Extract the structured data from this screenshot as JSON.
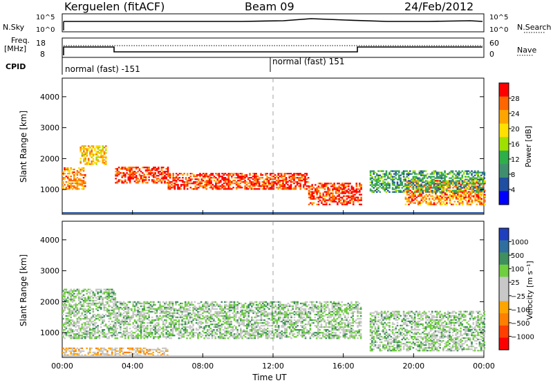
{
  "header": {
    "station": "Kerguelen (fitACF)",
    "beam": "Beam 09",
    "date": "24/Feb/2012"
  },
  "top_panels": {
    "nsky_label": "N.Sky",
    "nsky_ticks": [
      "10^5",
      "10^0"
    ],
    "nsearch_label": "N.Search",
    "nsearch_ticks": [
      "10^5",
      "10^0"
    ],
    "freq_label_1": "Freq.",
    "freq_label_2": "[MHz]",
    "freq_ticks": [
      "18",
      "8"
    ],
    "nave_label": "Nave",
    "nave_ticks": [
      "60",
      "0"
    ],
    "cpid_label": "CPID",
    "cpid_segments": [
      "normal (fast) -151",
      "normal (fast) 151"
    ]
  },
  "chart_data": [
    {
      "type": "heatmap",
      "title": "",
      "xlabel": "",
      "ylabel": "Slant Range [km]",
      "x_ticks": [
        "00:00",
        "04:00",
        "08:00",
        "12:00",
        "16:00",
        "20:00",
        "00:00"
      ],
      "y_ticks": [
        1000,
        2000,
        3000,
        4000
      ],
      "ylim": [
        200,
        4600
      ],
      "colorbar": {
        "label": "Power [dB]",
        "ticks": [
          "28",
          "24",
          "20",
          "16",
          "12",
          "8",
          "4"
        ],
        "colors": [
          "#ff0000",
          "#ff6600",
          "#ffa500",
          "#ffe000",
          "#a0e000",
          "#2faf4a",
          "#3f8f6f",
          "#1f4fa0",
          "#0000ff"
        ]
      },
      "echo_regions": [
        {
          "t": [
            0.0,
            1.3
          ],
          "r": [
            1000,
            1700
          ],
          "level": 2
        },
        {
          "t": [
            1.0,
            2.5
          ],
          "r": [
            1800,
            2400
          ],
          "level": 3
        },
        {
          "t": [
            3.0,
            6.0
          ],
          "r": [
            1200,
            1700
          ],
          "level": 1
        },
        {
          "t": [
            6.0,
            10.0
          ],
          "r": [
            1000,
            1500
          ],
          "level": 1
        },
        {
          "t": [
            10.0,
            14.0
          ],
          "r": [
            1000,
            1500
          ],
          "level": 1
        },
        {
          "t": [
            14.0,
            17.0
          ],
          "r": [
            500,
            1200
          ],
          "level": 1
        },
        {
          "t": [
            19.5,
            24.0
          ],
          "r": [
            500,
            1300
          ],
          "level": 2
        },
        {
          "t": [
            17.5,
            24.0
          ],
          "r": [
            900,
            1600
          ],
          "level": 6
        }
      ]
    },
    {
      "type": "heatmap",
      "title": "",
      "xlabel": "Time UT",
      "ylabel": "Slant Range [km]",
      "x_ticks": [
        "00:00",
        "04:00",
        "08:00",
        "12:00",
        "16:00",
        "20:00",
        "00:00"
      ],
      "y_ticks": [
        1000,
        2000,
        3000,
        4000
      ],
      "ylim": [
        200,
        4600
      ],
      "colorbar": {
        "label": "Velocity [m s⁻¹]",
        "ticks": [
          "1000",
          "500",
          "100",
          "25",
          "−25",
          "−100",
          "−500",
          "−1000"
        ],
        "colors": [
          "#1f3fbf",
          "#2f6f9f",
          "#3f8f5f",
          "#6fcf3f",
          "#c8c8c8",
          "#c8c8c8",
          "#ffa500",
          "#ff7f00",
          "#ff3f00",
          "#ff0000"
        ]
      },
      "echo_regions": [
        {
          "t": [
            0.0,
            3.0
          ],
          "r": [
            800,
            2400
          ],
          "level": 4
        },
        {
          "t": [
            3.0,
            17.0
          ],
          "r": [
            800,
            2000
          ],
          "level": 4
        },
        {
          "t": [
            0.0,
            6.0
          ],
          "r": [
            250,
            500
          ],
          "level": 6
        },
        {
          "t": [
            17.5,
            24.0
          ],
          "r": [
            400,
            1700
          ],
          "level": 4
        }
      ]
    }
  ]
}
